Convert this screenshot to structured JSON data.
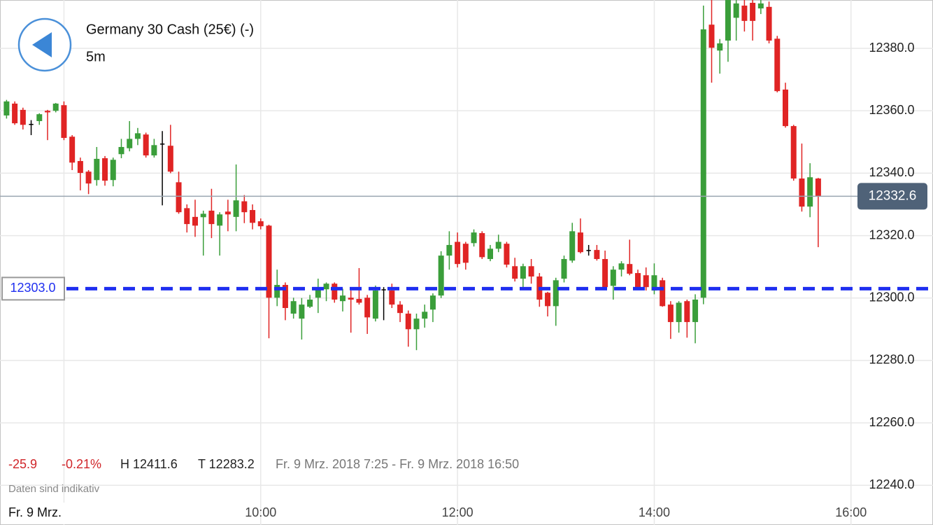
{
  "header": {
    "title": "Germany 30 Cash (25€) (-)",
    "interval": "5m"
  },
  "stats": {
    "change": "-25.9",
    "change_percent": "-0.21%",
    "high": "H 12411.6",
    "low": "T 12283.2",
    "range": "Fr. 9 Mrz. 2018 7:25 - Fr. 9 Mrz. 2018 16:50",
    "note": "Daten sind indikativ"
  },
  "chart_data": {
    "type": "candlestick",
    "x": [
      "07:25",
      "07:30",
      "07:35",
      "07:40",
      "07:45",
      "07:50",
      "07:55",
      "08:00",
      "08:05",
      "08:10",
      "08:15",
      "08:20",
      "08:25",
      "08:30",
      "08:35",
      "08:40",
      "08:45",
      "08:50",
      "08:55",
      "09:00",
      "09:05",
      "09:10",
      "09:15",
      "09:20",
      "09:25",
      "09:30",
      "09:35",
      "09:40",
      "09:45",
      "09:50",
      "09:55",
      "10:00",
      "10:05",
      "10:10",
      "10:15",
      "10:20",
      "10:25",
      "10:30",
      "10:35",
      "10:40",
      "10:45",
      "10:50",
      "10:55",
      "11:00",
      "11:05",
      "11:10",
      "11:15",
      "11:20",
      "11:25",
      "11:30",
      "11:35",
      "11:40",
      "11:45",
      "11:50",
      "11:55",
      "12:00",
      "12:05",
      "12:10",
      "12:15",
      "12:20",
      "12:25",
      "12:30",
      "12:35",
      "12:40",
      "12:45",
      "12:50",
      "12:55",
      "13:00",
      "13:05",
      "13:10",
      "13:15",
      "13:20",
      "13:25",
      "13:30",
      "13:35",
      "13:40",
      "13:45",
      "13:50",
      "13:55",
      "14:00",
      "14:05",
      "14:10",
      "14:15",
      "14:20",
      "14:25",
      "14:30",
      "14:35",
      "14:40",
      "14:45",
      "14:50",
      "14:55",
      "15:00",
      "15:05",
      "15:10",
      "15:15",
      "15:20",
      "15:25",
      "15:30",
      "15:35",
      "15:40"
    ],
    "open": [
      12358.5,
      12362.3,
      12360.3,
      12355.8,
      12356.7,
      12360,
      12360,
      12361.8,
      12351.7,
      12343.9,
      12340.5,
      12337.8,
      12344.8,
      12337.8,
      12346.1,
      12348,
      12351,
      12352.4,
      12345.7,
      12349.5,
      12348.8,
      12337.1,
      12328.8,
      12326,
      12325.9,
      12328,
      12323.2,
      12327.7,
      12326,
      12331,
      12328.2,
      12324.6,
      12323.2,
      12300.1,
      12304.2,
      12295,
      12293.4,
      12297.2,
      12300.1,
      12302.8,
      12304.6,
      12299,
      12300.1,
      12299.7,
      12300.1,
      12293.4,
      12302.8,
      12302.4,
      12297.9,
      12295,
      12290,
      12293.4,
      12296.3,
      12300.8,
      12313.6,
      12318,
      12317.4,
      12317.6,
      12320.8,
      12312.5,
      12315.8,
      12317.4,
      12310.2,
      12306.2,
      12310.2,
      12306.9,
      12301.7,
      12297.4,
      12306.2,
      12312,
      12321,
      12315.4,
      12315.4,
      12312.5,
      12303.9,
      12309.1,
      12310.9,
      12308,
      12307.3,
      12302.4,
      12305.7,
      12297.9,
      12292.3,
      12299,
      12292.3,
      12300.1,
      12387.6,
      12379.3,
      12382.5,
      12389.8,
      12393.7,
      12394.6,
      12392.8,
      12393.3,
      12383.1,
      12366.8,
      12355.1,
      12338.3,
      12329.3,
      12338.3
    ],
    "high": [
      12363.5,
      12363,
      12361,
      12357,
      12359.2,
      12360.3,
      12362.5,
      12363,
      12352.2,
      12345,
      12341,
      12348.4,
      12345.5,
      12345,
      12351,
      12356.7,
      12354.5,
      12353,
      12351,
      12353.5,
      12355.5,
      12340.5,
      12330,
      12331.5,
      12328,
      12335,
      12327.5,
      12331.5,
      12342.8,
      12333,
      12330,
      12325.5,
      12323.5,
      12309.1,
      12305,
      12300.1,
      12300,
      12301,
      12306.2,
      12305,
      12305,
      12303,
      12302.4,
      12309.6,
      12301,
      12304,
      12303.5,
      12304.6,
      12299,
      12296,
      12295,
      12297.9,
      12301.5,
      12315,
      12321.4,
      12321,
      12318,
      12322,
      12321.4,
      12317,
      12320.3,
      12318,
      12312.9,
      12311,
      12312.5,
      12308,
      12302,
      12306.5,
      12313.6,
      12324.1,
      12325.5,
      12317,
      12317,
      12315.2,
      12310.2,
      12311.8,
      12318.7,
      12309.1,
      12309.8,
      12311.1,
      12306.5,
      12299,
      12299,
      12299.5,
      12301.2,
      12393.7,
      12398,
      12383,
      12400,
      12397,
      12396,
      12397,
      12396,
      12395,
      12384,
      12369,
      12355.5,
      12349.5,
      12343.2,
      12338.5
    ],
    "low": [
      12357.5,
      12355.5,
      12354,
      12352.2,
      12355.5,
      12350.6,
      12359.5,
      12350.6,
      12341,
      12334.5,
      12333.3,
      12336,
      12336,
      12335.8,
      12344.8,
      12347,
      12349,
      12345,
      12345,
      12329.7,
      12340,
      12327,
      12321,
      12319.6,
      12313.6,
      12319.2,
      12313.6,
      12321.4,
      12321.4,
      12324,
      12322,
      12322,
      12287.1,
      12297.4,
      12292.9,
      12293.4,
      12286.7,
      12296.8,
      12295.2,
      12299,
      12298.5,
      12295.7,
      12288.9,
      12297.9,
      12288.5,
      12292.5,
      12292.9,
      12296.8,
      12292.3,
      12284.4,
      12283.3,
      12290.5,
      12292.3,
      12300,
      12309.1,
      12309.8,
      12309.1,
      12316.5,
      12312.5,
      12311.8,
      12314.7,
      12309.8,
      12305.3,
      12303.5,
      12304.6,
      12297.2,
      12294.1,
      12291.1,
      12305,
      12311.3,
      12314.3,
      12313.6,
      12312,
      12303,
      12299.5,
      12306.9,
      12307.3,
      12303,
      12302.4,
      12301.2,
      12297.2,
      12286.9,
      12288.9,
      12287.3,
      12285.5,
      12298,
      12369,
      12371.9,
      12375.7,
      12382.5,
      12385.4,
      12382.5,
      12391,
      12381.6,
      12365.9,
      12354.6,
      12337.6,
      12327.7,
      12325.9,
      12316.3
    ],
    "close": [
      12363,
      12356,
      12355.5,
      12355.8,
      12358.9,
      12359.5,
      12362.3,
      12351.3,
      12343.4,
      12340.1,
      12336.7,
      12344.6,
      12337.6,
      12344.3,
      12348.4,
      12351,
      12352.8,
      12345.7,
      12349,
      12349.5,
      12340.5,
      12327.5,
      12323.7,
      12323.2,
      12327,
      12323.7,
      12326.8,
      12326.8,
      12331.3,
      12327.5,
      12324.1,
      12323,
      12300.1,
      12304.2,
      12296.8,
      12299,
      12297.9,
      12299.5,
      12303.5,
      12304.6,
      12299.5,
      12300.8,
      12299.5,
      12298.5,
      12293.8,
      12302.4,
      12302.8,
      12297.9,
      12295.2,
      12290,
      12293.4,
      12295.6,
      12300.8,
      12313.6,
      12317,
      12310.9,
      12311.3,
      12321,
      12313.1,
      12315.8,
      12318,
      12310.7,
      12306.2,
      12310.2,
      12306.9,
      12299.5,
      12297.4,
      12305.7,
      12312.5,
      12321.4,
      12314.7,
      12315.4,
      12312.5,
      12303.5,
      12309.1,
      12311.1,
      12307.8,
      12303.5,
      12303.5,
      12307.3,
      12297.4,
      12292.3,
      12298.5,
      12292.3,
      12299.5,
      12386.1,
      12380.2,
      12381.6,
      12398,
      12394.4,
      12388.8,
      12388.8,
      12394.4,
      12382.5,
      12366.3,
      12355.1,
      12338.3,
      12329.3,
      12338.7,
      12332.6
    ],
    "up_color": "#3a9e3a",
    "down_color": "#e02424",
    "flat_color": "#000000",
    "xlim": [
      "07:21",
      "16:50"
    ],
    "xticks": [
      {
        "value": "08:00",
        "label": "Fr. 9 Mrz."
      },
      "10:00",
      "12:00",
      "14:00",
      "16:00"
    ],
    "ylim": [
      12234,
      12395.5
    ],
    "yticks": [
      {
        "value": 12240,
        "label": "12240.0"
      },
      {
        "value": 12260,
        "label": "12260.0"
      },
      {
        "value": 12280,
        "label": "12280.0"
      },
      {
        "value": 12300,
        "label": "12300.0"
      },
      {
        "value": 12320,
        "label": "12320.0"
      },
      {
        "value": 12340,
        "label": "12340.0"
      },
      {
        "value": 12360,
        "label": "12360.0"
      },
      {
        "value": 12380,
        "label": "12380.0"
      }
    ],
    "grid": true,
    "reference_line": {
      "value": 12303.0,
      "label": "12303.0",
      "color": "#1f2ff0"
    },
    "last_price": {
      "value": 12332.6,
      "label": "12332.6",
      "color": "#4f6278"
    }
  }
}
